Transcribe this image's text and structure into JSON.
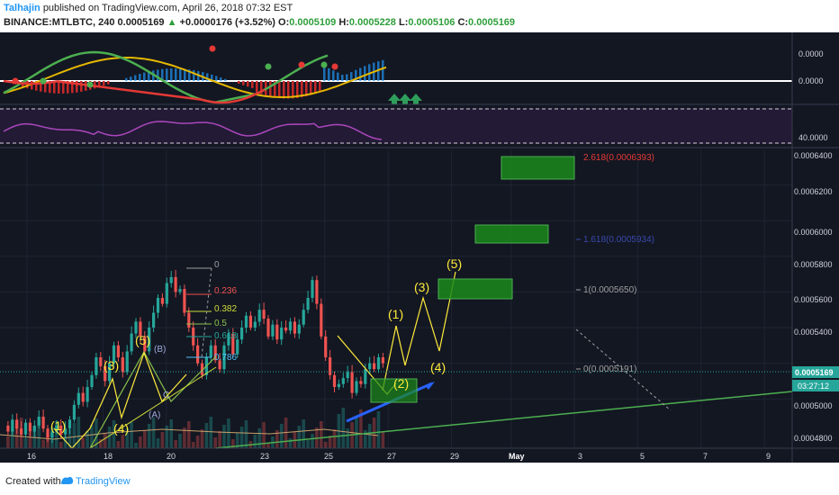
{
  "header": {
    "author": "Talhajin",
    "published": "published on TradingView.com, April 26, 2018 07:32 EST",
    "symbol": "BINANCE:MTLBTC, 240",
    "last": "0.0005169",
    "change_arrow": "▲",
    "change": "+0.0000176 (+3.52%)",
    "o_label": "O:",
    "o_value": "0.0005109",
    "h_label": "H:",
    "h_value": "0.0005228",
    "l_label": "L:",
    "l_value": "0.0005106",
    "c_label": "C:",
    "c_value": "0.0005169"
  },
  "colors": {
    "background": "#131722",
    "up_candle": "#26a69a",
    "down_candle": "#ef5350",
    "wave": "#ffeb3b",
    "trend": "#4caf50",
    "target_box": "#1b8a1b",
    "blue_line": "#2962ff",
    "rsi": "#9c27b0"
  },
  "indicator1": {
    "axis_labels": [
      "0.0000",
      "0.0000"
    ]
  },
  "indicator2": {
    "axis_label": "40.0000"
  },
  "price_axis": {
    "labels": [
      "0.0006400",
      "0.0006200",
      "0.0006000",
      "0.0005800",
      "0.0005600",
      "0.0005400",
      "0.0005000",
      "0.0004800"
    ],
    "current_price": "0.0005169",
    "countdown": "03:27:12"
  },
  "time_axis": [
    "16",
    "18",
    "20",
    "23",
    "25",
    "27",
    "29",
    "May",
    "3",
    "5",
    "7",
    "9"
  ],
  "fib_levels": [
    {
      "label": "0",
      "color": "#9e9e9e"
    },
    {
      "label": "0.236",
      "color": "#ef5350"
    },
    {
      "label": "0.382",
      "color": "#cddc39"
    },
    {
      "label": "0.5",
      "color": "#8bc34a"
    },
    {
      "label": "0.618",
      "color": "#26a69a"
    },
    {
      "label": "0.786",
      "color": "#4fc3f7"
    }
  ],
  "fib_ext": [
    {
      "label": "2.618(0.0006393)",
      "color": "#e53935"
    },
    {
      "label": "1.618(0.0005934)",
      "color": "#3949ab"
    },
    {
      "label": "1(0.0005650)",
      "color": "#9e9e9e"
    },
    {
      "label": "0(0.0005191)",
      "color": "#9e9e9e"
    }
  ],
  "wave_labels": {
    "historic": [
      "(1)",
      "(3)",
      "(4)",
      "(5)"
    ],
    "corrective": [
      "(B)",
      "(A)",
      "C"
    ],
    "projection": [
      "(1)",
      "(2)",
      "(3)",
      "(4)",
      "(5)"
    ]
  },
  "footer": {
    "created_with": "Created with",
    "brand": "TradingView"
  },
  "chart_data": {
    "type": "candlestick",
    "symbol": "BINANCE:MTLBTC",
    "interval": "240",
    "y_range": [
      0.00047,
      0.00065
    ],
    "projected_waves": [
      "(1)",
      "(2)",
      "(3)",
      "(4)",
      "(5)"
    ],
    "fib_extension_targets": [
      0.0006393,
      0.0005934,
      0.000565,
      0.0005191
    ],
    "last_close": 0.0005169
  }
}
